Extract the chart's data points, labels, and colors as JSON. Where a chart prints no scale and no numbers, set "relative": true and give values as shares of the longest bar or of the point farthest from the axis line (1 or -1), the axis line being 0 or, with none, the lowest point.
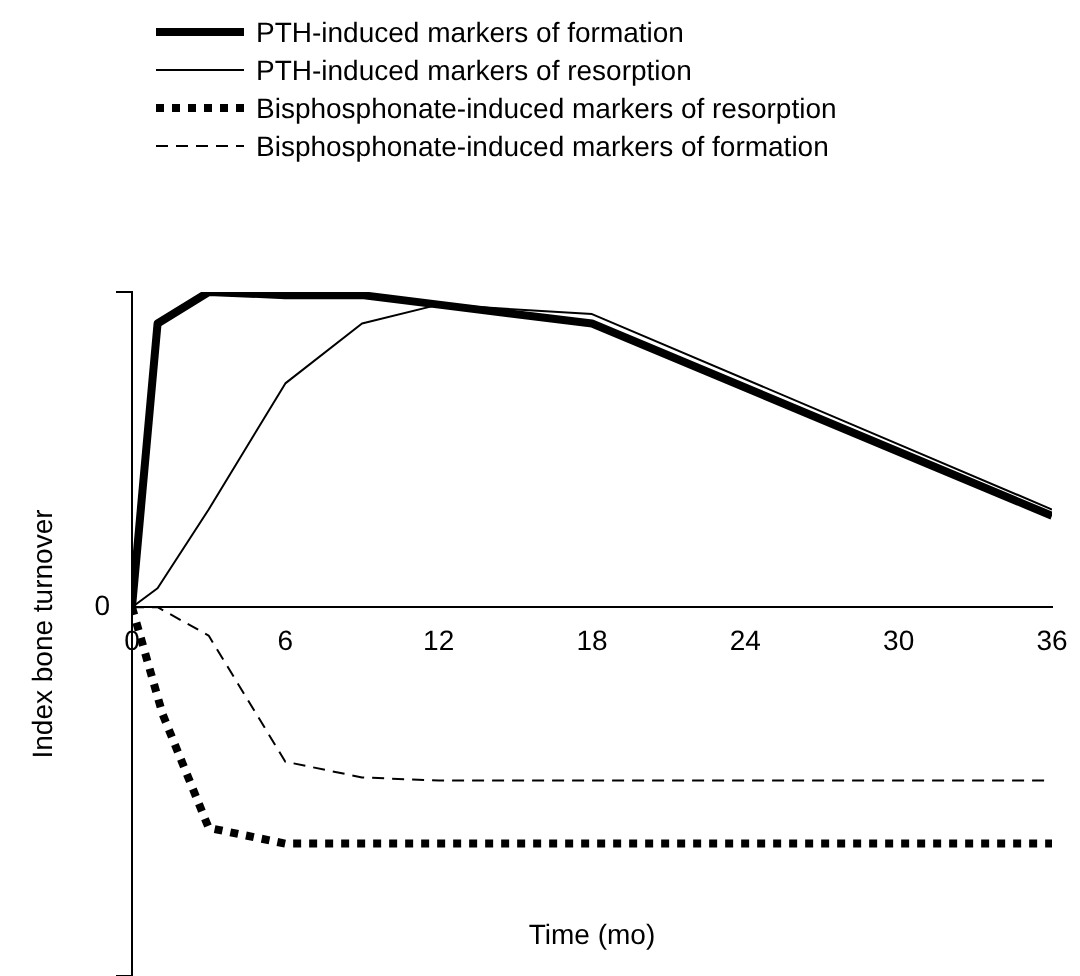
{
  "chart_data": {
    "type": "line",
    "relative": true,
    "xlabel": "Time (mo)",
    "ylabel": "Index bone turnover",
    "annotations": [
      "0"
    ],
    "xlim": [
      0,
      36
    ],
    "xticks": [
      0,
      6,
      12,
      18,
      24,
      30,
      36
    ],
    "legend": "top",
    "marker": "none",
    "grid": false,
    "series": [
      {
        "name": "PTH-induced markers of formation",
        "color": "#000000",
        "line_style": "solid",
        "x": [
          0,
          1,
          3,
          6,
          9,
          12,
          18,
          36
        ],
        "values": [
          0,
          0.9,
          1,
          0.99,
          0.99,
          0.96,
          0.9,
          0.29
        ]
      },
      {
        "name": "PTH-induced markers of resorption",
        "color": "#000000",
        "line_style": "solid",
        "x": [
          0,
          1,
          3,
          6,
          9,
          12,
          18,
          36
        ],
        "values": [
          0,
          0.06,
          0.31,
          0.71,
          0.9,
          0.96,
          0.93,
          0.31
        ]
      },
      {
        "name": "Bisphosphonate-induced markers of resorption",
        "color": "#000000",
        "line_style": "dotted",
        "x": [
          0,
          1.2,
          3,
          6,
          36
        ],
        "values": [
          0,
          -0.34,
          -0.7,
          -0.75,
          -0.75
        ]
      },
      {
        "name": "Bisphosphonate-induced markers of formation",
        "color": "#000000",
        "line_style": "dashed",
        "x": [
          0,
          1,
          3,
          6,
          9,
          12,
          36
        ],
        "values": [
          0,
          0,
          -0.09,
          -0.49,
          -0.54,
          -0.55,
          -0.55
        ]
      }
    ]
  }
}
